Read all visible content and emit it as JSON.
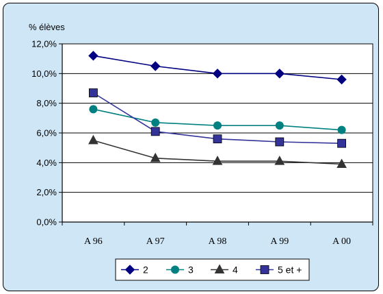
{
  "chart_data": {
    "type": "line",
    "title": "",
    "xlabel": "",
    "ylabel": "% élèves",
    "categories": [
      "A 96",
      "A 97",
      "A 98",
      "A 99",
      "A 00"
    ],
    "ylim": [
      0,
      12
    ],
    "ytick_values": [
      0,
      2,
      4,
      6,
      8,
      10,
      12
    ],
    "ytick_labels": [
      "0,0%",
      "2,0%",
      "4,0%",
      "6,0%",
      "8,0%",
      "10,0%",
      "12,0%"
    ],
    "grid": "horizontal",
    "legend_position": "bottom",
    "series": [
      {
        "name": "2",
        "values": [
          11.2,
          10.5,
          10.0,
          10.0,
          9.6
        ],
        "color": "#000080",
        "marker": "diamond"
      },
      {
        "name": "3",
        "values": [
          7.6,
          6.7,
          6.5,
          6.5,
          6.2
        ],
        "color": "#008080",
        "marker": "circle"
      },
      {
        "name": "4",
        "values": [
          5.5,
          4.3,
          4.1,
          4.1,
          3.9
        ],
        "color": "#333333",
        "marker": "triangle"
      },
      {
        "name": "5 et +",
        "values": [
          8.7,
          6.1,
          5.6,
          5.4,
          5.3
        ],
        "color": "#333399",
        "marker": "square"
      }
    ]
  }
}
